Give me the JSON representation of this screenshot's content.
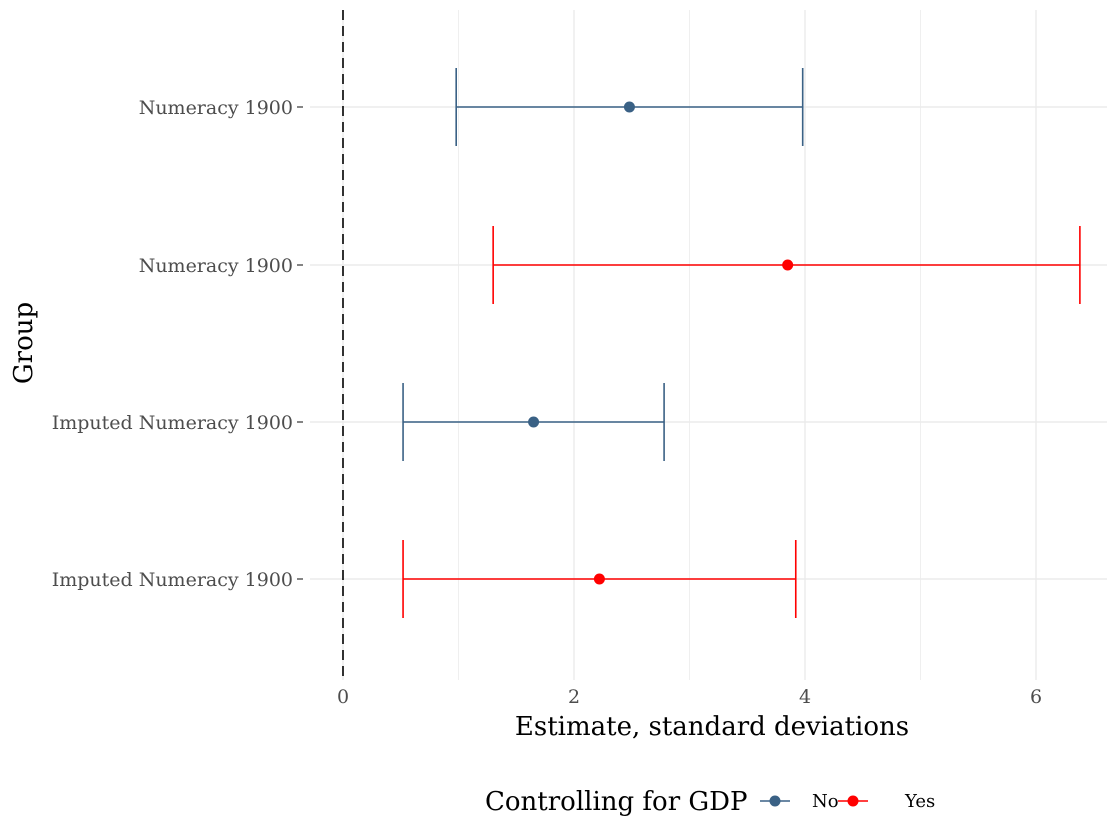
{
  "chart_data": {
    "type": "forest",
    "xlabel": "Estimate, standard deviations",
    "ylabel": "Group",
    "xlim": [
      0,
      6.4
    ],
    "x_ticks": [
      0,
      2,
      4,
      6
    ],
    "reference_line_x": 0,
    "rows": [
      {
        "label": "Numeracy 1900",
        "estimate": 2.48,
        "low": 0.98,
        "high": 3.98,
        "controlling": "No"
      },
      {
        "label": "Numeracy 1900",
        "estimate": 3.85,
        "low": 1.3,
        "high": 6.38,
        "controlling": "Yes"
      },
      {
        "label": "Imputed Numeracy 1900",
        "estimate": 1.65,
        "low": 0.52,
        "high": 2.78,
        "controlling": "No"
      },
      {
        "label": "Imputed Numeracy 1900",
        "estimate": 2.22,
        "low": 0.52,
        "high": 3.92,
        "controlling": "Yes"
      }
    ],
    "legend": {
      "title": "Controlling for GDP",
      "position": "bottom",
      "items": [
        {
          "label": "No",
          "color": "#3a6185"
        },
        {
          "label": "Yes",
          "color": "#ff0000"
        }
      ]
    }
  }
}
